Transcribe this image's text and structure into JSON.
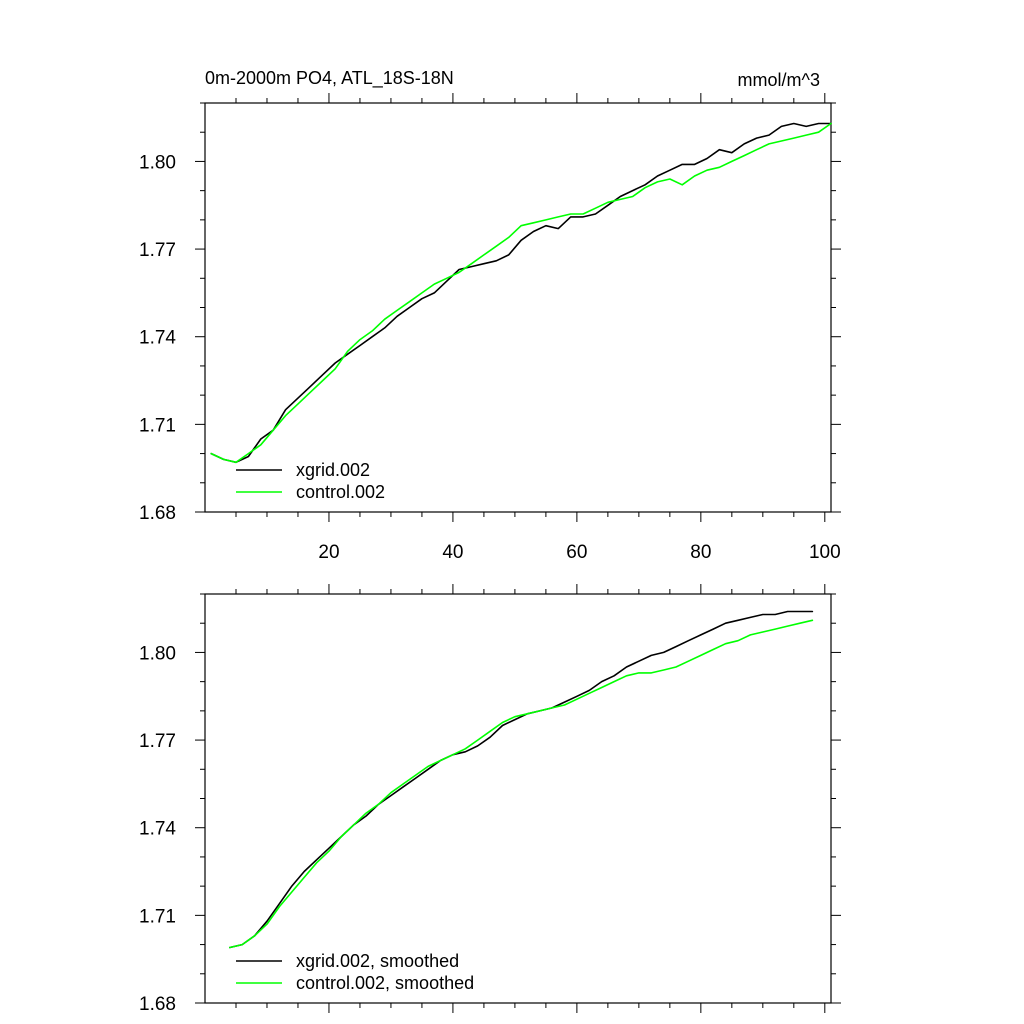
{
  "chart_data": [
    {
      "type": "line",
      "title": "0m-2000m PO4, ATL_18S-18N",
      "title_right": "mmol/m^3",
      "xlim": [
        0,
        101
      ],
      "ylim": [
        1.68,
        1.82
      ],
      "xticks": [
        20,
        40,
        60,
        80,
        100
      ],
      "xtick_labels": [
        "20",
        "40",
        "60",
        "80",
        "100"
      ],
      "yticks": [
        1.68,
        1.71,
        1.74,
        1.77,
        1.8
      ],
      "ytick_labels": [
        "1.68",
        "1.71",
        "1.74",
        "1.77",
        "1.80"
      ],
      "legend_position": "bottom-left",
      "grid": false,
      "series": [
        {
          "name": "xgrid.002",
          "color": "#000000",
          "x": [
            1,
            3,
            5,
            7,
            9,
            11,
            13,
            15,
            17,
            19,
            21,
            23,
            25,
            27,
            29,
            31,
            33,
            35,
            37,
            39,
            41,
            43,
            45,
            47,
            49,
            51,
            53,
            55,
            57,
            59,
            61,
            63,
            65,
            67,
            69,
            71,
            73,
            75,
            77,
            79,
            81,
            83,
            85,
            87,
            89,
            91,
            93,
            95,
            97,
            99,
            101
          ],
          "y": [
            1.7,
            1.698,
            1.697,
            1.699,
            1.705,
            1.708,
            1.715,
            1.719,
            1.723,
            1.727,
            1.731,
            1.734,
            1.737,
            1.74,
            1.743,
            1.747,
            1.75,
            1.753,
            1.755,
            1.759,
            1.763,
            1.764,
            1.765,
            1.766,
            1.768,
            1.773,
            1.776,
            1.778,
            1.777,
            1.781,
            1.781,
            1.782,
            1.785,
            1.788,
            1.79,
            1.792,
            1.795,
            1.797,
            1.799,
            1.799,
            1.801,
            1.804,
            1.803,
            1.806,
            1.808,
            1.809,
            1.812,
            1.813,
            1.812,
            1.813,
            1.813
          ]
        },
        {
          "name": "control.002",
          "color": "#00ff00",
          "x": [
            1,
            3,
            5,
            7,
            9,
            11,
            13,
            15,
            17,
            19,
            21,
            23,
            25,
            27,
            29,
            31,
            33,
            35,
            37,
            39,
            41,
            43,
            45,
            47,
            49,
            51,
            53,
            55,
            57,
            59,
            61,
            63,
            65,
            67,
            69,
            71,
            73,
            75,
            77,
            79,
            81,
            83,
            85,
            87,
            89,
            91,
            93,
            95,
            97,
            99,
            101
          ],
          "y": [
            1.7,
            1.698,
            1.697,
            1.7,
            1.703,
            1.708,
            1.713,
            1.717,
            1.721,
            1.725,
            1.729,
            1.735,
            1.739,
            1.742,
            1.746,
            1.749,
            1.752,
            1.755,
            1.758,
            1.76,
            1.762,
            1.765,
            1.768,
            1.771,
            1.774,
            1.778,
            1.779,
            1.78,
            1.781,
            1.782,
            1.782,
            1.784,
            1.786,
            1.787,
            1.788,
            1.791,
            1.793,
            1.794,
            1.792,
            1.795,
            1.797,
            1.798,
            1.8,
            1.802,
            1.804,
            1.806,
            1.807,
            1.808,
            1.809,
            1.81,
            1.813
          ]
        }
      ]
    },
    {
      "type": "line",
      "title": "",
      "xlim": [
        0,
        101
      ],
      "ylim": [
        1.68,
        1.82
      ],
      "xticks": [
        20,
        40,
        60,
        80,
        100
      ],
      "xtick_labels": [],
      "yticks": [
        1.68,
        1.71,
        1.74,
        1.77,
        1.8
      ],
      "ytick_labels": [
        "1.68",
        "1.71",
        "1.74",
        "1.77",
        "1.80"
      ],
      "legend_position": "bottom-left",
      "grid": false,
      "series": [
        {
          "name": "xgrid.002, smoothed",
          "color": "#000000",
          "x": [
            4,
            6,
            8,
            10,
            12,
            14,
            16,
            18,
            20,
            22,
            24,
            26,
            28,
            30,
            32,
            34,
            36,
            38,
            40,
            42,
            44,
            46,
            48,
            50,
            52,
            54,
            56,
            58,
            60,
            62,
            64,
            66,
            68,
            70,
            72,
            74,
            76,
            78,
            80,
            82,
            84,
            86,
            88,
            90,
            92,
            94,
            96,
            98
          ],
          "y": [
            1.699,
            1.7,
            1.703,
            1.708,
            1.714,
            1.72,
            1.725,
            1.729,
            1.733,
            1.737,
            1.741,
            1.744,
            1.748,
            1.751,
            1.754,
            1.757,
            1.76,
            1.763,
            1.765,
            1.766,
            1.768,
            1.771,
            1.775,
            1.777,
            1.779,
            1.78,
            1.781,
            1.783,
            1.785,
            1.787,
            1.79,
            1.792,
            1.795,
            1.797,
            1.799,
            1.8,
            1.802,
            1.804,
            1.806,
            1.808,
            1.81,
            1.811,
            1.812,
            1.813,
            1.813,
            1.814,
            1.814,
            1.814
          ]
        },
        {
          "name": "control.002, smoothed",
          "color": "#00ff00",
          "x": [
            4,
            6,
            8,
            10,
            12,
            14,
            16,
            18,
            20,
            22,
            24,
            26,
            28,
            30,
            32,
            34,
            36,
            38,
            40,
            42,
            44,
            46,
            48,
            50,
            52,
            54,
            56,
            58,
            60,
            62,
            64,
            66,
            68,
            70,
            72,
            74,
            76,
            78,
            80,
            82,
            84,
            86,
            88,
            90,
            92,
            94,
            96,
            98
          ],
          "y": [
            1.699,
            1.7,
            1.703,
            1.707,
            1.713,
            1.718,
            1.723,
            1.728,
            1.732,
            1.737,
            1.741,
            1.745,
            1.748,
            1.752,
            1.755,
            1.758,
            1.761,
            1.763,
            1.765,
            1.767,
            1.77,
            1.773,
            1.776,
            1.778,
            1.779,
            1.78,
            1.781,
            1.782,
            1.784,
            1.786,
            1.788,
            1.79,
            1.792,
            1.793,
            1.793,
            1.794,
            1.795,
            1.797,
            1.799,
            1.801,
            1.803,
            1.804,
            1.806,
            1.807,
            1.808,
            1.809,
            1.81,
            1.811
          ]
        }
      ]
    }
  ]
}
